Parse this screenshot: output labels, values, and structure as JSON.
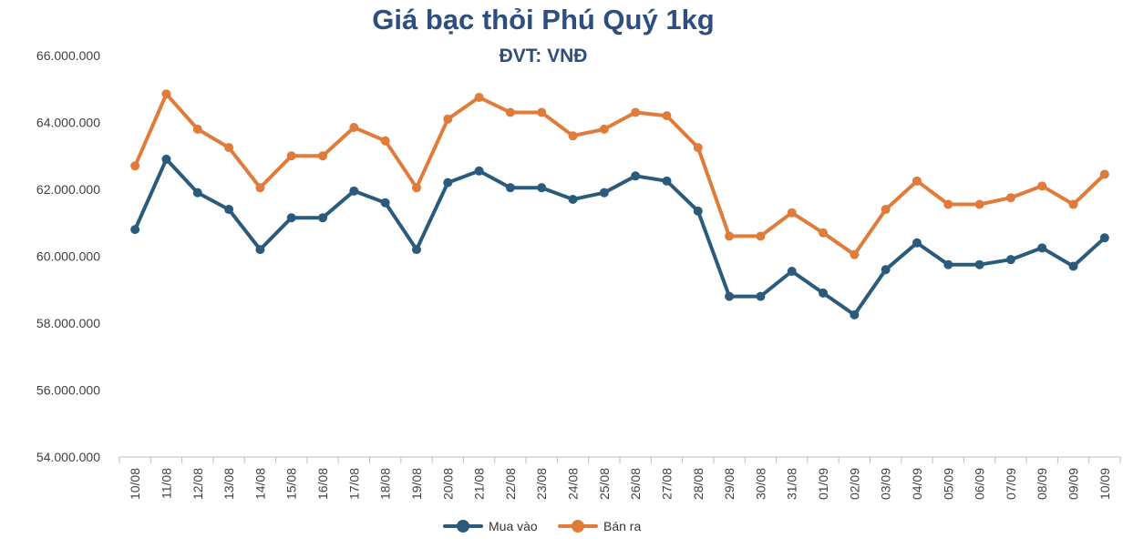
{
  "chart_data": {
    "type": "line",
    "title": "Giá bạc thỏi Phú Quý 1kg",
    "subtitle": "ĐVT: VNĐ",
    "categories": [
      "10/08",
      "11/08",
      "12/08",
      "13/08",
      "14/08",
      "15/08",
      "16/08",
      "17/08",
      "18/08",
      "19/08",
      "20/08",
      "21/08",
      "22/08",
      "23/08",
      "24/08",
      "25/08",
      "26/08",
      "27/08",
      "28/08",
      "29/08",
      "30/08",
      "31/08",
      "01/09",
      "02/09",
      "03/09",
      "04/09",
      "05/09",
      "06/09",
      "07/09",
      "08/09",
      "09/09",
      "10/09"
    ],
    "series": [
      {
        "name": "Mua vào",
        "color": "#2b5b7c",
        "values": [
          60800000,
          62900000,
          61900000,
          61400000,
          60200000,
          61150000,
          61150000,
          61950000,
          61600000,
          60200000,
          62200000,
          62550000,
          62050000,
          62050000,
          61700000,
          61900000,
          62400000,
          62250000,
          61350000,
          58800000,
          58800000,
          59550000,
          58900000,
          58250000,
          59600000,
          60400000,
          59750000,
          59750000,
          59900000,
          60250000,
          59700000,
          60550000
        ]
      },
      {
        "name": "Bán ra",
        "color": "#e07b39",
        "values": [
          62700000,
          64850000,
          63800000,
          63250000,
          62050000,
          63000000,
          63000000,
          63850000,
          63450000,
          62050000,
          64100000,
          64750000,
          64300000,
          64300000,
          63600000,
          63800000,
          64300000,
          64200000,
          63250000,
          60600000,
          60600000,
          61300000,
          60700000,
          60050000,
          61400000,
          62250000,
          61550000,
          61550000,
          61750000,
          62100000,
          61550000,
          62450000
        ]
      }
    ],
    "yticks": [
      "54.000.000",
      "56.000.000",
      "58.000.000",
      "60.000.000",
      "62.000.000",
      "64.000.000",
      "66.000.000"
    ],
    "ylim": [
      54000000,
      66000000
    ],
    "xlabel": "",
    "ylabel": "",
    "grid": false,
    "legend_position": "bottom"
  }
}
